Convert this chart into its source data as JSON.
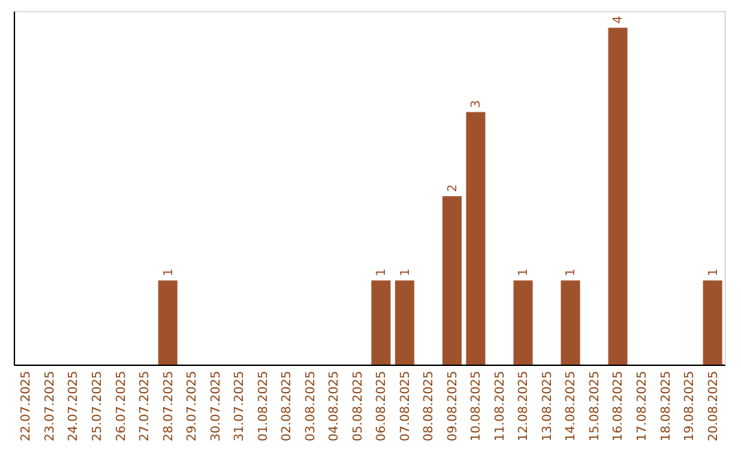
{
  "chart_data": {
    "type": "bar",
    "categories": [
      "22.07.2025",
      "23.07.2025",
      "24.07.2025",
      "25.07.2025",
      "26.07.2025",
      "27.07.2025",
      "28.07.2025",
      "29.07.2025",
      "30.07.2025",
      "31.07.2025",
      "01.08.2025",
      "02.08.2025",
      "03.08.2025",
      "04.08.2025",
      "05.08.2025",
      "06.08.2025",
      "07.08.2025",
      "08.08.2025",
      "09.08.2025",
      "10.08.2025",
      "11.08.2025",
      "12.08.2025",
      "13.08.2025",
      "14.08.2025",
      "15.08.2025",
      "16.08.2025",
      "17.08.2025",
      "18.08.2025",
      "19.08.2025",
      "20.08.2025"
    ],
    "values": [
      0,
      0,
      0,
      0,
      0,
      0,
      1,
      0,
      0,
      0,
      0,
      0,
      0,
      0,
      0,
      1,
      1,
      0,
      2,
      3,
      0,
      1,
      0,
      1,
      0,
      4,
      0,
      0,
      0,
      1
    ],
    "value_labels": [
      null,
      null,
      null,
      null,
      null,
      null,
      "1",
      null,
      null,
      null,
      null,
      null,
      null,
      null,
      null,
      "1",
      "1",
      null,
      "2",
      "3",
      null,
      "1",
      null,
      "1",
      null,
      "4",
      null,
      null,
      null,
      "1"
    ],
    "color": "#a0522d",
    "ylim": [
      0,
      4.2
    ],
    "tick_labels": "x",
    "grid": false
  }
}
